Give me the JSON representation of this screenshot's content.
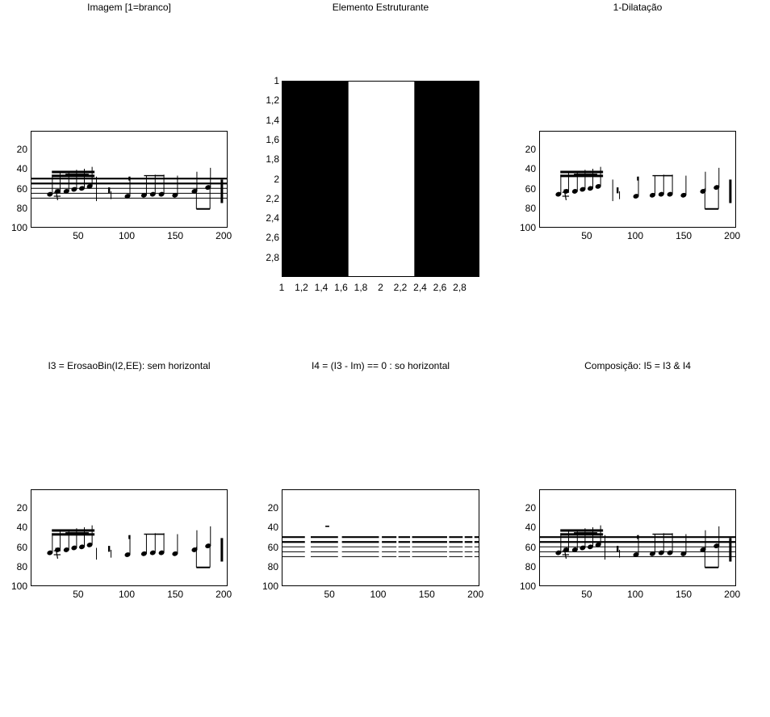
{
  "chart_data": [
    {
      "type": "heatmap",
      "title": "Imagem [1=branco]",
      "content": "music-staff",
      "xlim": [
        1,
        204
      ],
      "ylim": [
        1,
        100
      ],
      "xticks": [
        "50",
        "100",
        "150",
        "200"
      ],
      "yticks": [
        "20",
        "40",
        "60",
        "80",
        "100"
      ]
    },
    {
      "type": "heatmap",
      "title": "Elemento Estruturante",
      "content": "structuring-element",
      "matrix": [
        [
          0,
          1,
          0
        ]
      ],
      "colors": {
        "0": "#000000",
        "1": "#ffffff"
      },
      "xticks": [
        "1",
        "1,2",
        "1,4",
        "1,6",
        "1,8",
        "2",
        "2,2",
        "2,4",
        "2,6",
        "2,8"
      ],
      "yticks": [
        "1",
        "1,2",
        "1,4",
        "1,6",
        "1,8",
        "2",
        "2,2",
        "2,4",
        "2,6",
        "2,8"
      ]
    },
    {
      "type": "heatmap",
      "title": "1-Dilatação",
      "content": "dilation",
      "xlim": [
        1,
        204
      ],
      "ylim": [
        1,
        100
      ],
      "xticks": [
        "50",
        "100",
        "150",
        "200"
      ],
      "yticks": [
        "20",
        "40",
        "60",
        "80",
        "100"
      ]
    },
    {
      "type": "heatmap",
      "title": "I3 = ErosaoBin(I2,EE): sem horizontal",
      "content": "erosion",
      "xlim": [
        1,
        204
      ],
      "ylim": [
        1,
        100
      ],
      "xticks": [
        "50",
        "100",
        "150",
        "200"
      ],
      "yticks": [
        "20",
        "40",
        "60",
        "80",
        "100"
      ]
    },
    {
      "type": "heatmap",
      "title": "I4 = (I3 - Im) == 0 : so horizontal",
      "content": "horizontal",
      "xlim": [
        1,
        204
      ],
      "ylim": [
        1,
        100
      ],
      "xticks": [
        "50",
        "100",
        "150",
        "200"
      ],
      "yticks": [
        "20",
        "40",
        "60",
        "80",
        "100"
      ]
    },
    {
      "type": "heatmap",
      "title": "Composição: I5 = I3 & I4",
      "content": "composition",
      "xlim": [
        1,
        204
      ],
      "ylim": [
        1,
        100
      ],
      "xticks": [
        "50",
        "100",
        "150",
        "200"
      ],
      "yticks": [
        "20",
        "40",
        "60",
        "80",
        "100"
      ]
    }
  ]
}
